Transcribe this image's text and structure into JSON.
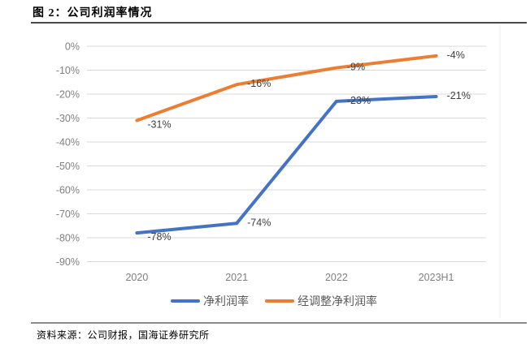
{
  "header": {
    "title": "图 2：公司利润率情况"
  },
  "footer": {
    "source": "资料来源：公司财报，国海证券研究所"
  },
  "chart_data": {
    "type": "line",
    "title": "",
    "xlabel": "",
    "ylabel": "",
    "categories": [
      "2020",
      "2021",
      "2022",
      "2023H1"
    ],
    "series": [
      {
        "name": "净利润率",
        "color": "#4472C4",
        "values": [
          -78,
          -74,
          -23,
          -21
        ],
        "labels": [
          "-78%",
          "-74%",
          "-23%",
          "-21%"
        ]
      },
      {
        "name": "经调整净利润率",
        "color": "#ED7D31",
        "values": [
          -31,
          -16,
          -9,
          -4
        ],
        "labels": [
          "-31%",
          "-16%",
          "-9%",
          "-4%"
        ]
      }
    ],
    "ylim": [
      -90,
      0
    ],
    "ytick_labels": [
      "0%",
      "-10%",
      "-20%",
      "-30%",
      "-40%",
      "-50%",
      "-60%",
      "-70%",
      "-80%",
      "-90%"
    ],
    "grid": true,
    "legend_position": "bottom"
  },
  "colors": {
    "gridline": "#D9D9D9",
    "axis_text": "#808080",
    "data_label_text": "#404040",
    "legend_text": "#595959",
    "series_blue": "#4472C4",
    "series_orange": "#ED7D31"
  }
}
